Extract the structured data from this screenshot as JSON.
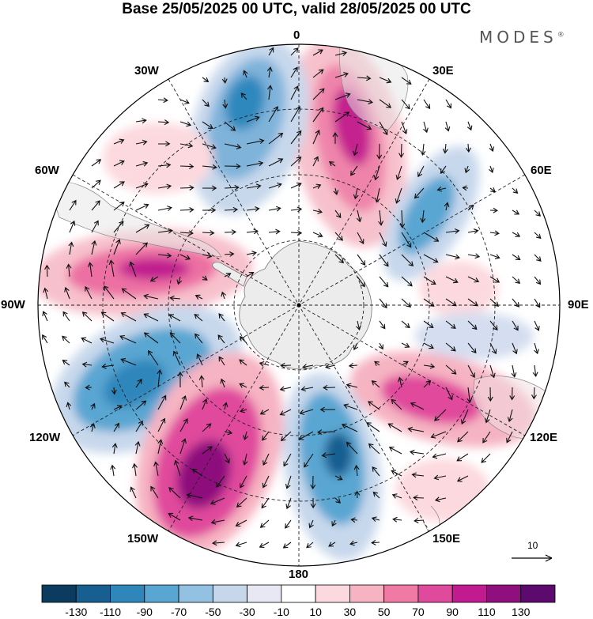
{
  "title": "Base 25/05/2025 00 UTC, valid 28/05/2025 00 UTC",
  "brand": "MODES",
  "brand_mark": "®",
  "lon_labels": {
    "n": "0",
    "ne": "30E",
    "ene": "60E",
    "e": "90E",
    "ese": "120E",
    "se": "150E",
    "s": "180",
    "sw": "150W",
    "wsw": "120W",
    "w": "90W",
    "wnw": "60W",
    "nw": "30W"
  },
  "vector_scale_label": "10",
  "colorbar": {
    "colors": [
      "#0b3b5e",
      "#175f91",
      "#2e86bb",
      "#5aa6d2",
      "#93c1e2",
      "#c6d7ec",
      "#e8e8f4",
      "#ffffff",
      "#fcd9de",
      "#f6b4c2",
      "#f07aa4",
      "#e04a9c",
      "#c11b8f",
      "#8e0f7d",
      "#5c0a6e"
    ],
    "tick_labels": [
      "-130",
      "-110",
      "-90",
      "-70",
      "-50",
      "-30",
      "-10",
      "10",
      "30",
      "50",
      "70",
      "90",
      "110",
      "130"
    ]
  },
  "field_lobes": [
    {
      "sign": "positive",
      "level": 110,
      "region": "near 20E-30E"
    },
    {
      "sign": "negative",
      "level": -90,
      "region": "near 30W"
    },
    {
      "sign": "negative",
      "level": -70,
      "region": "near 60E"
    },
    {
      "sign": "positive",
      "level": 110,
      "region": "near 90W"
    },
    {
      "sign": "negative",
      "level": -90,
      "region": "near 110W"
    },
    {
      "sign": "positive",
      "level": 130,
      "region": "near 150W"
    },
    {
      "sign": "negative",
      "level": -90,
      "region": "near 170E"
    },
    {
      "sign": "positive",
      "level": 90,
      "region": "near 120E"
    }
  ]
}
